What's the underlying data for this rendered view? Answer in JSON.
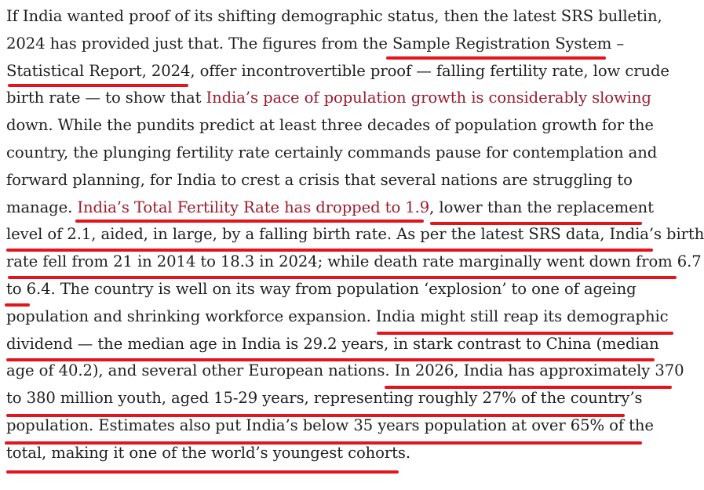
{
  "article": {
    "lines": [
      [
        {
          "t": "If India wanted proof of its shifting demographic status, then the latest SRS bulletin,"
        }
      ],
      [
        {
          "t": "2024 has provided just that. The figures from the "
        },
        {
          "t": "Sample Registration System",
          "link": true
        },
        {
          "t": " –"
        }
      ],
      [
        {
          "t": "Statistical Report, 2024",
          "link": true
        },
        {
          "t": ", offer incontrovertible proof — falling fertility rate, low crude"
        }
      ],
      [
        {
          "t": "birth rate — to show that "
        },
        {
          "t": "India’s pace of population growth is considerably slowing",
          "link": true,
          "red": true
        }
      ],
      [
        {
          "t": "down. While the pundits predict at least three decades of population growth for the"
        }
      ],
      [
        {
          "t": "country, the plunging fertility rate certainly commands pause for contemplation and"
        }
      ],
      [
        {
          "t": "forward planning, for India to crest a crisis that several nations are struggling to"
        }
      ],
      [
        {
          "t": "manage. "
        },
        {
          "t": "India’s Total Fertility Rate has dropped to 1.9",
          "link": true,
          "red": true
        },
        {
          "t": ", lower than the replacement"
        }
      ],
      [
        {
          "t": "level of 2.1, aided, in large, by a falling birth rate. As per the latest SRS data, India’s birth"
        }
      ],
      [
        {
          "t": "rate fell from 21 in 2014 to 18.3 in 2024; while death rate marginally went down from 6.7"
        }
      ],
      [
        {
          "t": "to 6.4. The country is well on its way from population ‘explosion’ to one of ageing"
        }
      ],
      [
        {
          "t": "population and shrinking workforce expansion. India might still reap its demographic"
        }
      ],
      [
        {
          "t": "dividend — the median age in India is 29.2 years, in stark contrast to China (median"
        }
      ],
      [
        {
          "t": "age of 40.2), and several other European nations. In 2026, India has approximately 370"
        }
      ],
      [
        {
          "t": "to 380 million youth, aged 15-29 years, representing roughly 27% of the country’s"
        }
      ],
      [
        {
          "t": "population. Estimates also put India’s below 35 years population at over 65% of the"
        }
      ],
      [
        {
          "t": "total, making it one of the world’s youngest cohorts."
        }
      ]
    ]
  }
}
